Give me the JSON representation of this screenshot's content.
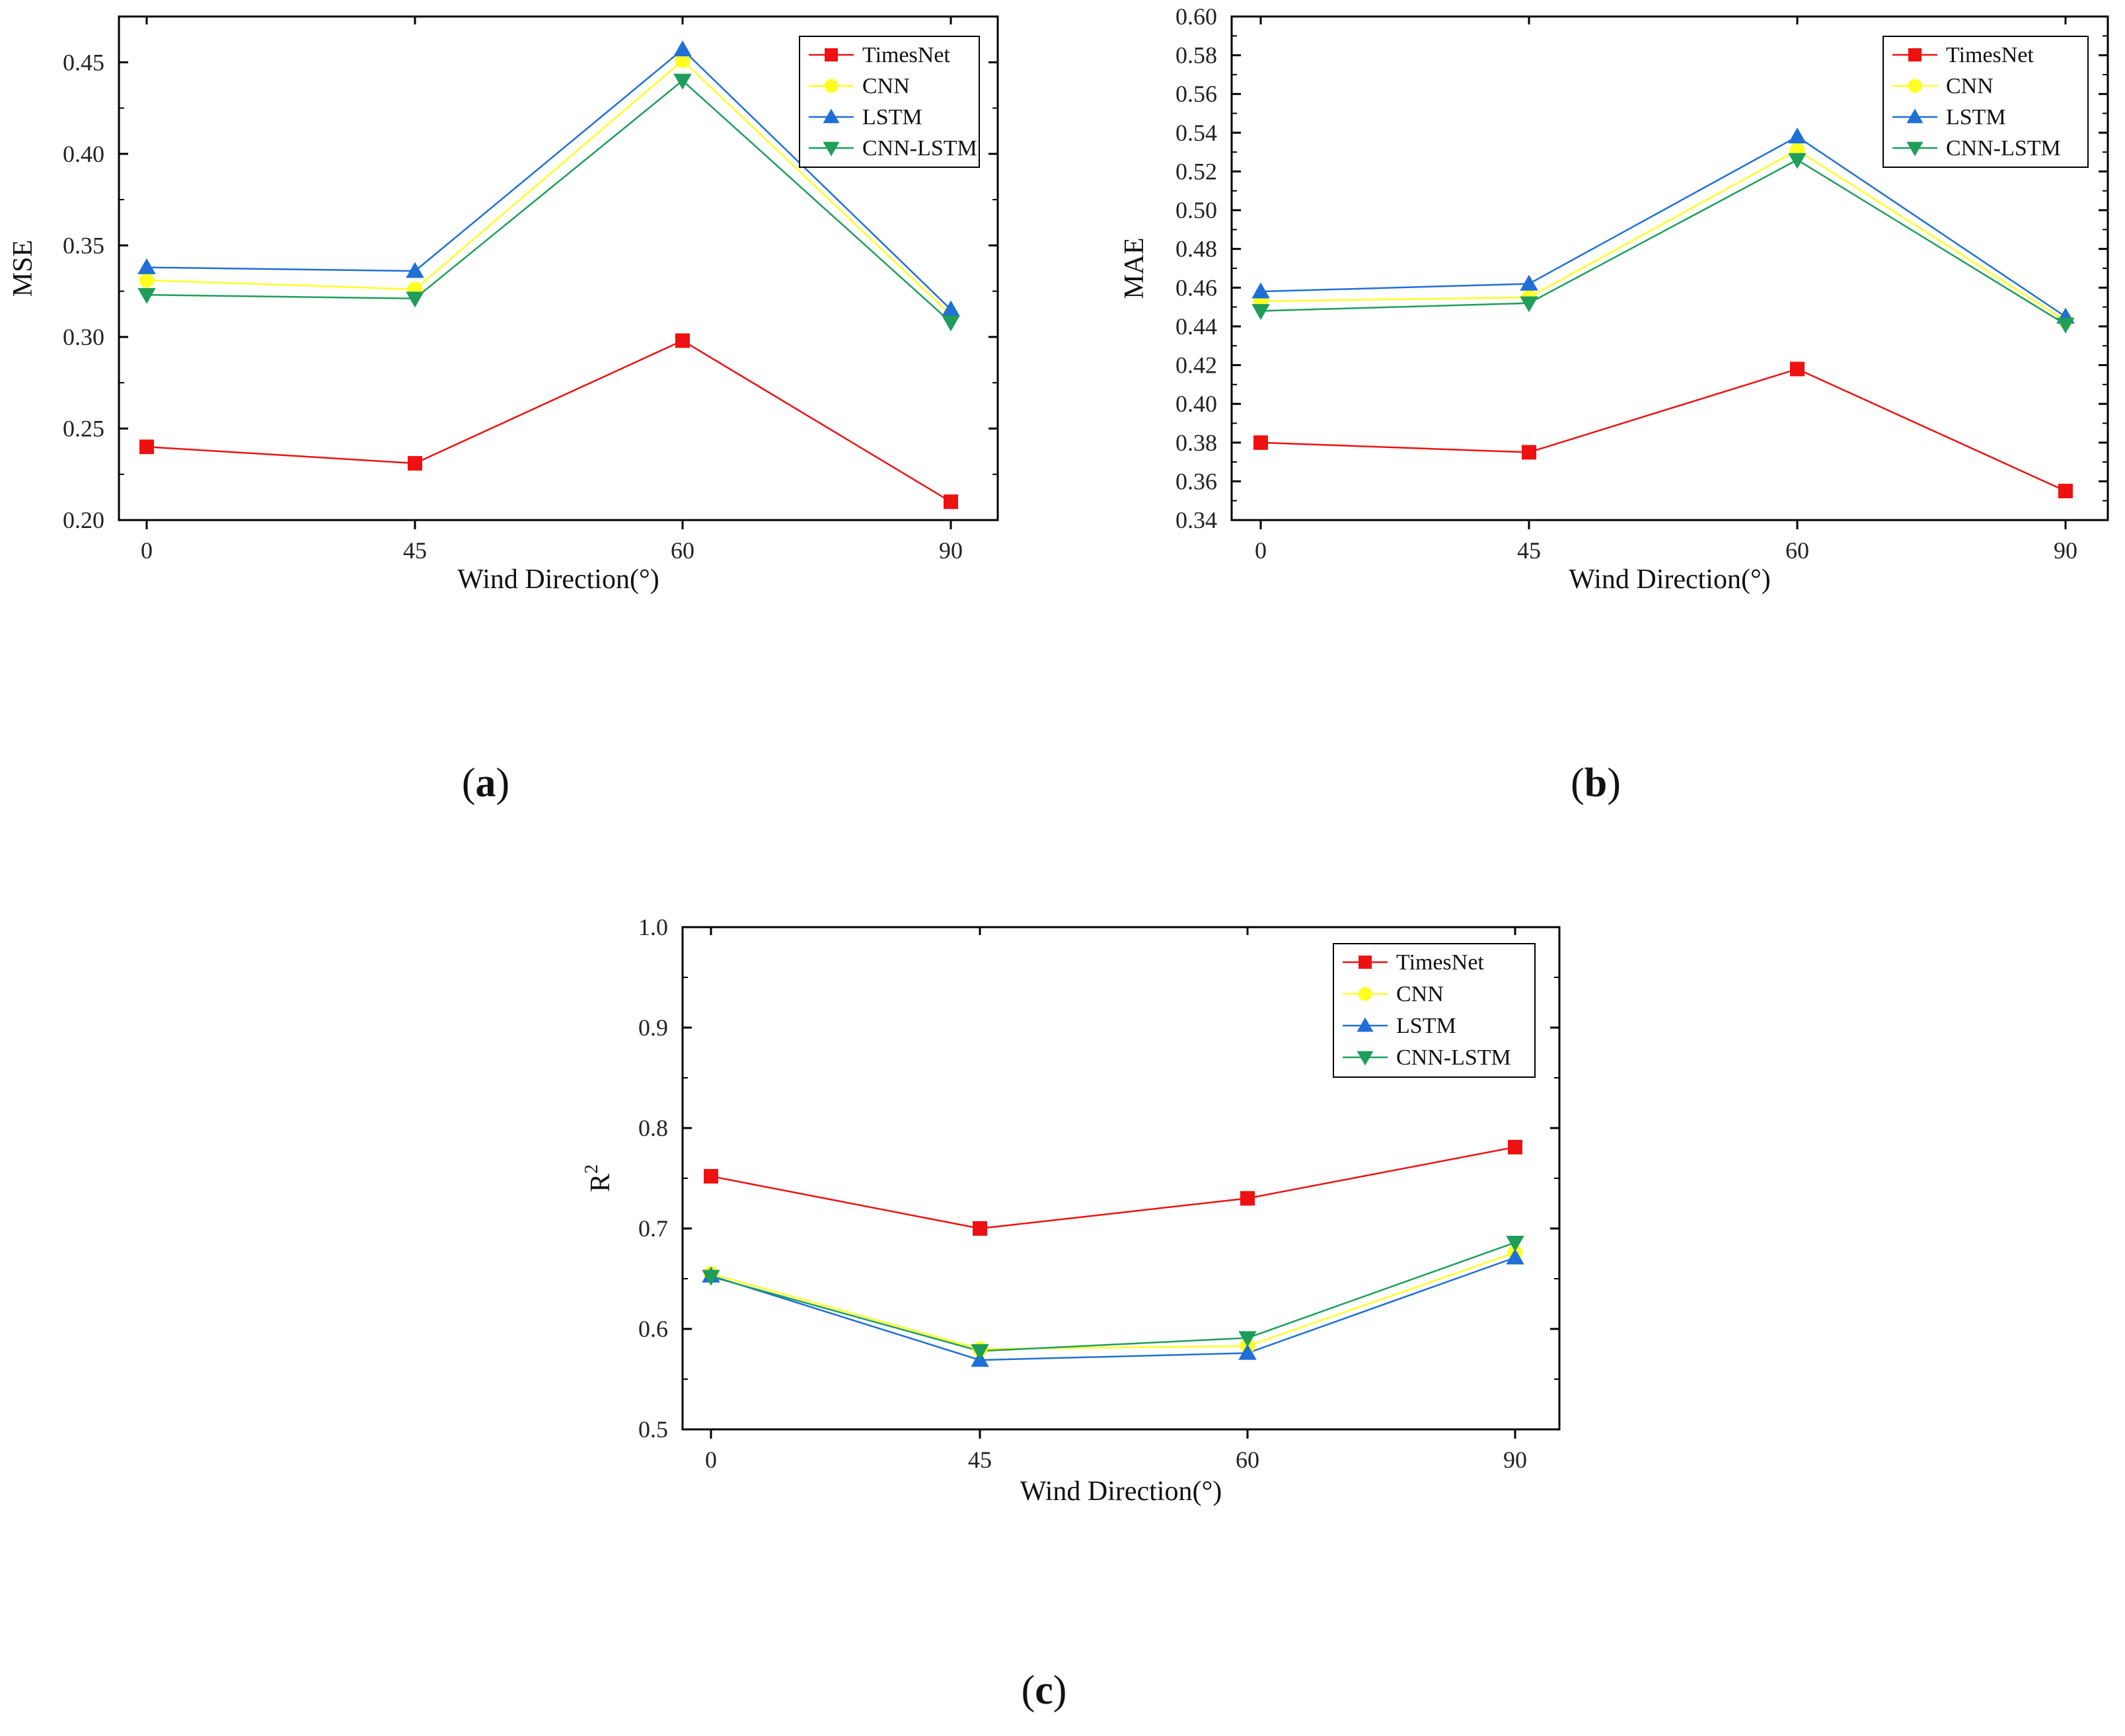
{
  "figure": {
    "panel_labels": [
      {
        "open": "(",
        "letter": "a",
        "close": ")"
      },
      {
        "open": "(",
        "letter": "b",
        "close": ")"
      },
      {
        "open": "(",
        "letter": "c",
        "close": ")"
      }
    ]
  },
  "colors": {
    "TimesNet": "#ee1111",
    "CNN": "#ffff22",
    "LSTM": "#1f6fd6",
    "CNN-LSTM": "#1e9e5a",
    "axis": "#000000"
  },
  "chart_data": [
    {
      "type": "line",
      "title": "",
      "xlabel": "Wind Direction(°)",
      "ylabel": "MSE",
      "ylabel_sup": "",
      "categories": [
        "0",
        "45",
        "60",
        "90"
      ],
      "ylim": [
        0.2,
        0.475
      ],
      "yticks": [
        "0.20",
        "0.25",
        "0.30",
        "0.35",
        "0.40",
        "0.45"
      ],
      "ytick_values": [
        0.2,
        0.25,
        0.3,
        0.35,
        0.4,
        0.45
      ],
      "legend_position": "top-right",
      "grid": false,
      "series": [
        {
          "name": "TimesNet",
          "marker": "square",
          "values": [
            0.24,
            0.231,
            0.298,
            0.21
          ]
        },
        {
          "name": "CNN",
          "marker": "circle",
          "values": [
            0.331,
            0.326,
            0.451,
            0.312
          ]
        },
        {
          "name": "LSTM",
          "marker": "triangle-up",
          "values": [
            0.338,
            0.336,
            0.457,
            0.315
          ]
        },
        {
          "name": "CNN-LSTM",
          "marker": "triangle-down",
          "values": [
            0.323,
            0.321,
            0.44,
            0.308
          ]
        }
      ]
    },
    {
      "type": "line",
      "title": "",
      "xlabel": "Wind Direction(°)",
      "ylabel": "MAE",
      "ylabel_sup": "",
      "categories": [
        "0",
        "45",
        "60",
        "90"
      ],
      "ylim": [
        0.34,
        0.6
      ],
      "yticks": [
        "0.34",
        "0.36",
        "0.38",
        "0.40",
        "0.42",
        "0.44",
        "0.46",
        "0.48",
        "0.50",
        "0.52",
        "0.54",
        "0.56",
        "0.58",
        "0.60"
      ],
      "ytick_values": [
        0.34,
        0.36,
        0.38,
        0.4,
        0.42,
        0.44,
        0.46,
        0.48,
        0.5,
        0.52,
        0.54,
        0.56,
        0.58,
        0.6
      ],
      "legend_position": "top-right",
      "grid": false,
      "series": [
        {
          "name": "TimesNet",
          "marker": "square",
          "values": [
            0.38,
            0.375,
            0.418,
            0.355
          ]
        },
        {
          "name": "CNN",
          "marker": "circle",
          "values": [
            0.453,
            0.455,
            0.531,
            0.443
          ]
        },
        {
          "name": "LSTM",
          "marker": "triangle-up",
          "values": [
            0.458,
            0.462,
            0.538,
            0.445
          ]
        },
        {
          "name": "CNN-LSTM",
          "marker": "triangle-down",
          "values": [
            0.448,
            0.452,
            0.526,
            0.441
          ]
        }
      ]
    },
    {
      "type": "line",
      "title": "",
      "xlabel": "Wind Direction(°)",
      "ylabel": "R",
      "ylabel_sup": "2",
      "categories": [
        "0",
        "45",
        "60",
        "90"
      ],
      "ylim": [
        0.5,
        1.0
      ],
      "yticks": [
        "0.5",
        "0.6",
        "0.7",
        "0.8",
        "0.9",
        "1.0"
      ],
      "ytick_values": [
        0.5,
        0.6,
        0.7,
        0.8,
        0.9,
        1.0
      ],
      "legend_position": "top-right",
      "grid": false,
      "series": [
        {
          "name": "TimesNet",
          "marker": "square",
          "values": [
            0.752,
            0.7,
            0.73,
            0.781
          ]
        },
        {
          "name": "CNN",
          "marker": "circle",
          "values": [
            0.655,
            0.58,
            0.583,
            0.676
          ]
        },
        {
          "name": "LSTM",
          "marker": "triangle-up",
          "values": [
            0.653,
            0.569,
            0.576,
            0.671
          ]
        },
        {
          "name": "CNN-LSTM",
          "marker": "triangle-down",
          "values": [
            0.652,
            0.578,
            0.591,
            0.686
          ]
        }
      ]
    }
  ]
}
